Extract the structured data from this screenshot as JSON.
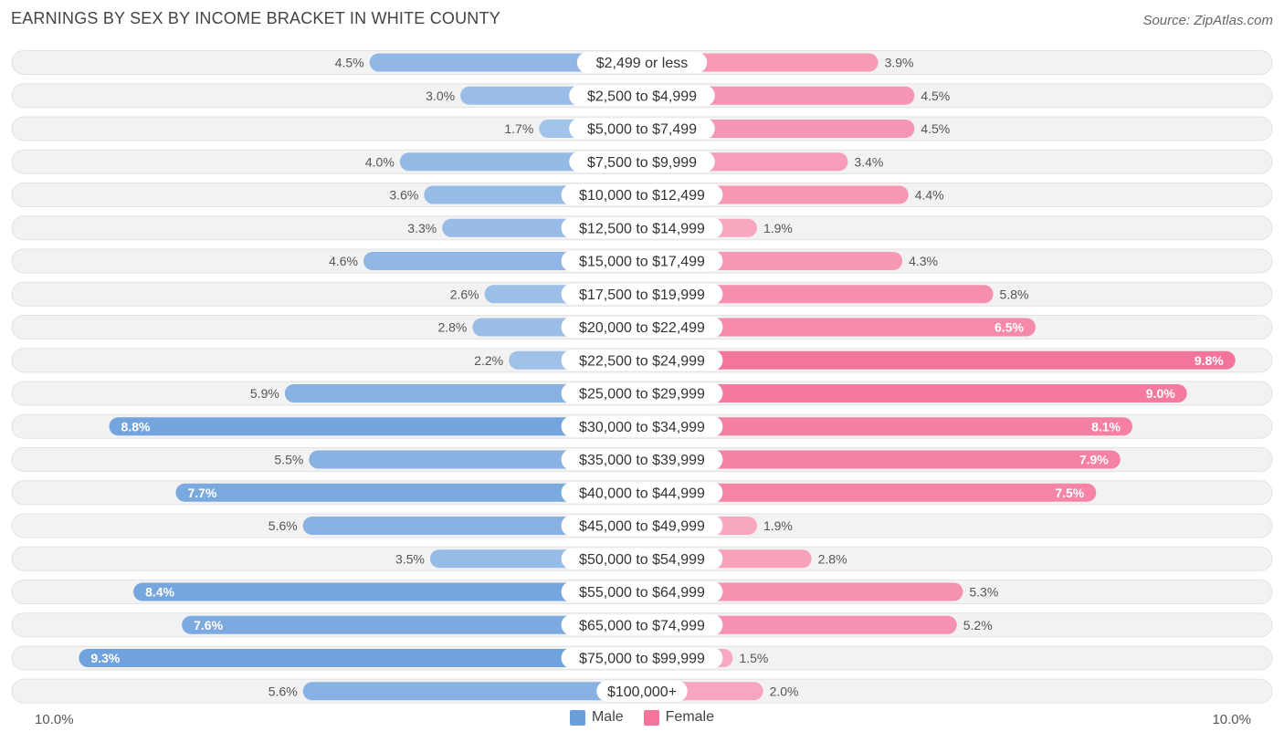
{
  "title": "EARNINGS BY SEX BY INCOME BRACKET IN WHITE COUNTY",
  "source": "Source: ZipAtlas.com",
  "colors": {
    "male": "#6b9fdc",
    "female": "#f4749b",
    "row_bg": "#f1f1f1"
  },
  "legend": {
    "male": "Male",
    "female": "Female"
  },
  "axis": {
    "left_label": "10.0%",
    "right_label": "10.0%"
  },
  "chart_data": {
    "type": "bar",
    "orientation": "horizontal-diverging",
    "title": "EARNINGS BY SEX BY INCOME BRACKET IN WHITE COUNTY",
    "xlim": [
      -10,
      10
    ],
    "categories": [
      "$2,499 or less",
      "$2,500 to $4,999",
      "$5,000 to $7,499",
      "$7,500 to $9,999",
      "$10,000 to $12,499",
      "$12,500 to $14,999",
      "$15,000 to $17,499",
      "$17,500 to $19,999",
      "$20,000 to $22,499",
      "$22,500 to $24,999",
      "$25,000 to $29,999",
      "$30,000 to $34,999",
      "$35,000 to $39,999",
      "$40,000 to $44,999",
      "$45,000 to $49,999",
      "$50,000 to $54,999",
      "$55,000 to $64,999",
      "$65,000 to $74,999",
      "$75,000 to $99,999",
      "$100,000+"
    ],
    "series": [
      {
        "name": "Male",
        "values": [
          4.5,
          3.0,
          1.7,
          4.0,
          3.6,
          3.3,
          4.6,
          2.6,
          2.8,
          2.2,
          5.9,
          8.8,
          5.5,
          7.7,
          5.6,
          3.5,
          8.4,
          7.6,
          9.3,
          5.6
        ]
      },
      {
        "name": "Female",
        "values": [
          3.9,
          4.5,
          4.5,
          3.4,
          4.4,
          1.9,
          4.3,
          5.8,
          6.5,
          9.8,
          9.0,
          8.1,
          7.9,
          7.5,
          1.9,
          2.8,
          5.3,
          5.2,
          1.5,
          2.0
        ]
      }
    ],
    "value_labels": {
      "male": [
        "4.5%",
        "3.0%",
        "1.7%",
        "4.0%",
        "3.6%",
        "3.3%",
        "4.6%",
        "2.6%",
        "2.8%",
        "2.2%",
        "5.9%",
        "8.8%",
        "5.5%",
        "7.7%",
        "5.6%",
        "3.5%",
        "8.4%",
        "7.6%",
        "9.3%",
        "5.6%"
      ],
      "female": [
        "3.9%",
        "4.5%",
        "4.5%",
        "3.4%",
        "4.4%",
        "1.9%",
        "4.3%",
        "5.8%",
        "6.5%",
        "9.8%",
        "9.0%",
        "8.1%",
        "7.9%",
        "7.5%",
        "1.9%",
        "2.8%",
        "5.3%",
        "5.2%",
        "1.5%",
        "2.0%"
      ]
    },
    "legend_position": "bottom-center"
  }
}
